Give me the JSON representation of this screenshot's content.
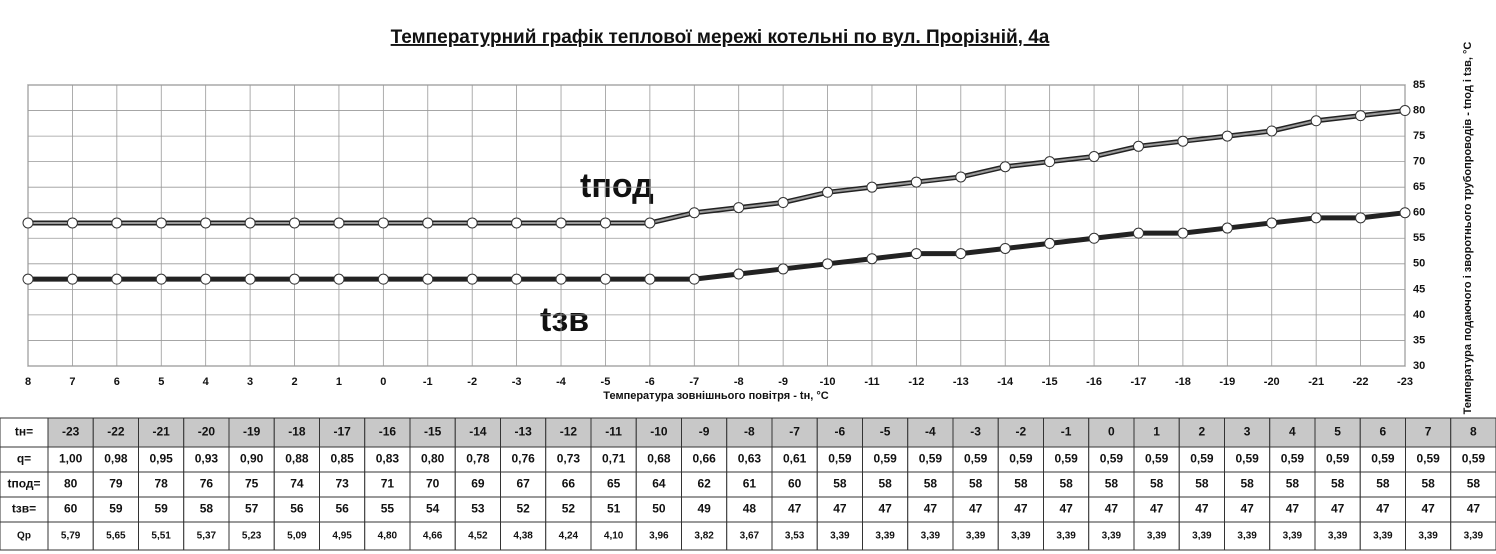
{
  "chart_data": {
    "type": "line",
    "title": "Температурний графік теплової мережі котельні по вул. Прорізній, 4а",
    "x_label": "Температура зовнішнього повітря - tн, °С",
    "y_label": "Температура подаючого і зворотнього трубопроводів - tпод і tзв, °С",
    "x": [
      8,
      7,
      6,
      5,
      4,
      3,
      2,
      1,
      0,
      -1,
      -2,
      -3,
      -4,
      -5,
      -6,
      -7,
      -8,
      -9,
      -10,
      -11,
      -12,
      -13,
      -14,
      -15,
      -16,
      -17,
      -18,
      -19,
      -20,
      -21,
      -22,
      -23
    ],
    "xlim": [
      8,
      -23
    ],
    "xticks": [
      8,
      7,
      6,
      5,
      4,
      3,
      2,
      1,
      0,
      -1,
      -2,
      -3,
      -4,
      -5,
      -6,
      -7,
      -8,
      -9,
      -10,
      -11,
      -12,
      -13,
      -14,
      -15,
      -16,
      -17,
      -18,
      -19,
      -20,
      -21,
      -22,
      -23
    ],
    "ylim": [
      30,
      85
    ],
    "yticks": [
      30,
      35,
      40,
      45,
      50,
      55,
      60,
      65,
      70,
      75,
      80,
      85
    ],
    "grid": true,
    "series": [
      {
        "name": "tпод",
        "color": "#9a9a9a",
        "values": [
          58,
          58,
          58,
          58,
          58,
          58,
          58,
          58,
          58,
          58,
          58,
          58,
          58,
          58,
          58,
          60,
          61,
          62,
          64,
          65,
          66,
          67,
          69,
          70,
          71,
          73,
          74,
          75,
          76,
          78,
          79,
          80
        ]
      },
      {
        "name": "tзв",
        "color": "#222222",
        "values": [
          47,
          47,
          47,
          47,
          47,
          47,
          47,
          47,
          47,
          47,
          47,
          47,
          47,
          47,
          47,
          47,
          48,
          49,
          50,
          51,
          52,
          52,
          53,
          54,
          55,
          56,
          56,
          57,
          58,
          59,
          59,
          60
        ]
      }
    ]
  },
  "table": {
    "rows": [
      [
        "tн=",
        "-23",
        "-22",
        "-21",
        "-20",
        "-19",
        "-18",
        "-17",
        "-16",
        "-15",
        "-14",
        "-13",
        "-12",
        "-11",
        "-10",
        "-9",
        "-8",
        "-7",
        "-6",
        "-5",
        "-4",
        "-3",
        "-2",
        "-1",
        "0",
        "1",
        "2",
        "3",
        "4",
        "5",
        "6",
        "7",
        "8"
      ],
      [
        "q=",
        "1,00",
        "0,98",
        "0,95",
        "0,93",
        "0,90",
        "0,88",
        "0,85",
        "0,83",
        "0,80",
        "0,78",
        "0,76",
        "0,73",
        "0,71",
        "0,68",
        "0,66",
        "0,63",
        "0,61",
        "0,59",
        "0,59",
        "0,59",
        "0,59",
        "0,59",
        "0,59",
        "0,59",
        "0,59",
        "0,59",
        "0,59",
        "0,59",
        "0,59",
        "0,59",
        "0,59",
        "0,59"
      ],
      [
        "tпод=",
        "80",
        "79",
        "78",
        "76",
        "75",
        "74",
        "73",
        "71",
        "70",
        "69",
        "67",
        "66",
        "65",
        "64",
        "62",
        "61",
        "60",
        "58",
        "58",
        "58",
        "58",
        "58",
        "58",
        "58",
        "58",
        "58",
        "58",
        "58",
        "58",
        "58",
        "58",
        "58"
      ],
      [
        "tзв=",
        "60",
        "59",
        "59",
        "58",
        "57",
        "56",
        "56",
        "55",
        "54",
        "53",
        "52",
        "52",
        "51",
        "50",
        "49",
        "48",
        "47",
        "47",
        "47",
        "47",
        "47",
        "47",
        "47",
        "47",
        "47",
        "47",
        "47",
        "47",
        "47",
        "47",
        "47",
        "47"
      ],
      [
        "Qр",
        "5,79",
        "5,65",
        "5,51",
        "5,37",
        "5,23",
        "5,09",
        "4,95",
        "4,80",
        "4,66",
        "4,52",
        "4,38",
        "4,24",
        "4,10",
        "3,96",
        "3,82",
        "3,67",
        "3,53",
        "3,39",
        "3,39",
        "3,39",
        "3,39",
        "3,39",
        "3,39",
        "3,39",
        "3,39",
        "3,39",
        "3,39",
        "3,39",
        "3,39",
        "3,39",
        "3,39",
        "3,39"
      ]
    ]
  }
}
